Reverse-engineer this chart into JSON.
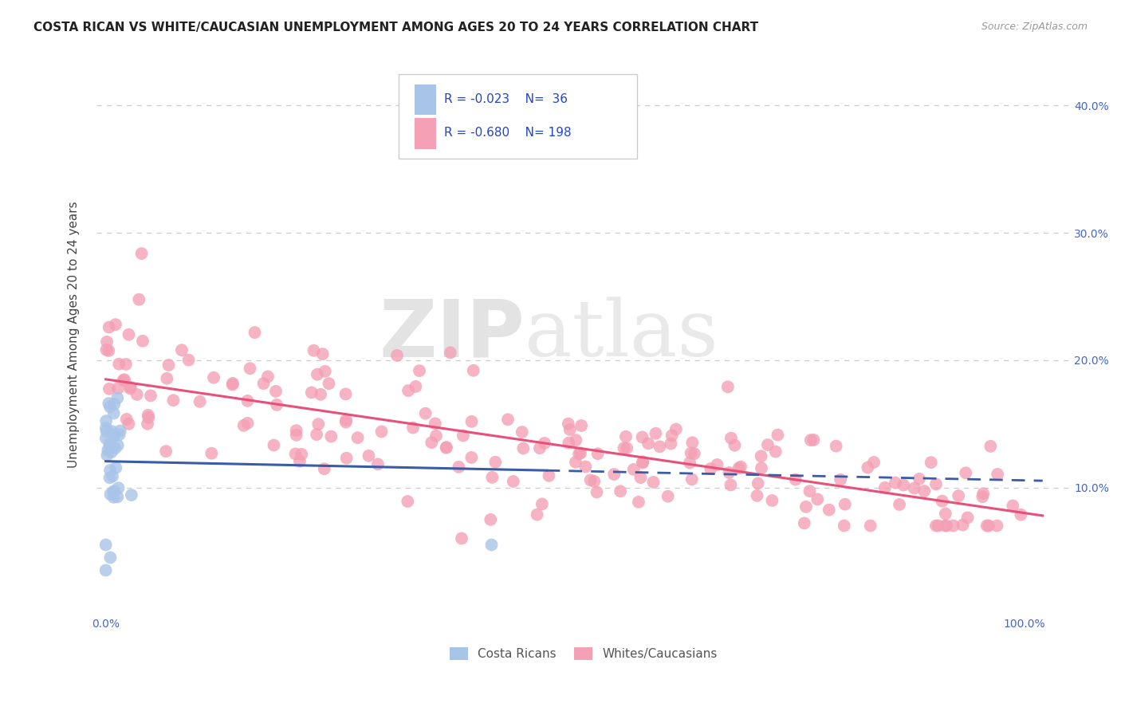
{
  "title": "COSTA RICAN VS WHITE/CAUCASIAN UNEMPLOYMENT AMONG AGES 20 TO 24 YEARS CORRELATION CHART",
  "source": "Source: ZipAtlas.com",
  "ylabel": "Unemployment Among Ages 20 to 24 years",
  "x_ticks": [
    0.0,
    0.1,
    0.2,
    0.3,
    0.4,
    0.5,
    0.6,
    0.7,
    0.8,
    0.9,
    1.0
  ],
  "x_tick_labels": [
    "0.0%",
    "",
    "",
    "",
    "",
    "",
    "",
    "",
    "",
    "",
    "100.0%"
  ],
  "y_ticks": [
    0.1,
    0.2,
    0.3,
    0.4
  ],
  "y_tick_labels": [
    "10.0%",
    "20.0%",
    "30.0%",
    "40.0%"
  ],
  "xlim": [
    -0.01,
    1.05
  ],
  "ylim": [
    0.0,
    0.44
  ],
  "color_blue": "#a8c4e8",
  "color_pink": "#f4a0b5",
  "color_blue_line": "#3a5ca8",
  "color_pink_line": "#e8507a",
  "color_dashed": "#aaaacc",
  "watermark_zip": "ZIP",
  "watermark_atlas": "atlas",
  "legend_labels": [
    "Costa Ricans",
    "Whites/Caucasians"
  ],
  "background_color": "#ffffff",
  "grid_color": "#cccccc",
  "axis_color": "#4466cc",
  "tick_color": "#4466cc"
}
